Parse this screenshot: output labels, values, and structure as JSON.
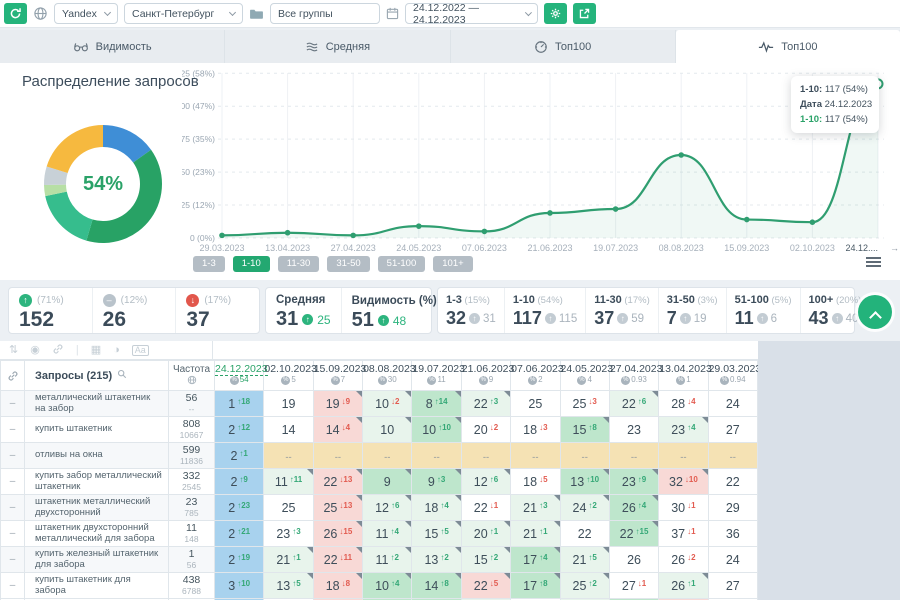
{
  "topbar": {
    "engine": "Yandex",
    "region": "Санкт-Петербург",
    "groups": "Все группы",
    "date_range": "24.12.2022 — 24.12.2023"
  },
  "tabs": [
    {
      "label": "Видимость",
      "icon": "visibility-icon",
      "active": false
    },
    {
      "label": "Средняя",
      "icon": "average-icon",
      "active": false
    },
    {
      "label": "Топ100",
      "icon": "gauge-icon",
      "active": false
    },
    {
      "label": "Топ100",
      "icon": "pulse-icon",
      "active": true
    }
  ],
  "donut": {
    "title": "Распределение запросов",
    "center_label": "54%",
    "type": "pie",
    "segments": [
      {
        "name": "1-3",
        "percent": 15,
        "color": "#3F8ED6"
      },
      {
        "name": "4-10",
        "percent": 39,
        "color": "#28A265"
      },
      {
        "name": "11-30",
        "percent": 17,
        "color": "#36BD8D"
      },
      {
        "name": "31-50",
        "percent": 3,
        "color": "#B7DFA5"
      },
      {
        "name": "51-100",
        "percent": 5,
        "color": "#C8D1D7"
      },
      {
        "name": "100+",
        "percent": 20,
        "color": "#F6B93F"
      }
    ]
  },
  "chart": {
    "type": "line",
    "series_name": "1-10",
    "x_labels": [
      "29.03.2023",
      "13.04.2023",
      "27.04.2023",
      "24.05.2023",
      "07.06.2023",
      "21.06.2023",
      "19.07.2023",
      "08.08.2023",
      "15.09.2023",
      "02.10.2023",
      "24.12...."
    ],
    "values": [
      2,
      4,
      2,
      9,
      5,
      19,
      22,
      63,
      14,
      12,
      117
    ],
    "ylim": [
      0,
      125
    ],
    "y_ticks": [
      {
        "v": 0,
        "label": "0 (0%)"
      },
      {
        "v": 25,
        "label": "25 (12%)"
      },
      {
        "v": 50,
        "label": "50 (23%)"
      },
      {
        "v": 75,
        "label": "75 (35%)"
      },
      {
        "v": 100,
        "label": "100 (47%)"
      },
      {
        "v": 125,
        "label": "125 (58%)"
      }
    ],
    "line_color": "#2F9E70",
    "tooltip": {
      "header_label": "1-10:",
      "header_value": "117 (54%)",
      "date_label": "Дата",
      "date_value": "24.12.2023",
      "series_label": "1-10:",
      "series_value": "117 (54%)"
    }
  },
  "range_buttons": {
    "items": [
      "1-3",
      "1-10",
      "11-30",
      "31-50",
      "51-100",
      "101+"
    ],
    "active": "1-10"
  },
  "stats": {
    "changes": [
      {
        "dir": "up",
        "label": "(71%)",
        "value": "152"
      },
      {
        "dir": "flat",
        "label": "(12%)",
        "value": "26"
      },
      {
        "dir": "down",
        "label": "(17%)",
        "value": "37"
      }
    ],
    "summary": [
      {
        "label": "Средняя",
        "value": "31",
        "delta": "25",
        "warn": false
      },
      {
        "label": "Видимость (%)",
        "value": "51",
        "delta": "48",
        "warn": true
      }
    ],
    "buckets": [
      {
        "label": "1-3",
        "percent": "(15%)",
        "value": "32",
        "delta": "31"
      },
      {
        "label": "1-10",
        "percent": "(54%)",
        "value": "117",
        "delta": "115"
      },
      {
        "label": "11-30",
        "percent": "(17%)",
        "value": "37",
        "delta": "59"
      },
      {
        "label": "31-50",
        "percent": "(3%)",
        "value": "7",
        "delta": "19"
      },
      {
        "label": "51-100",
        "percent": "(5%)",
        "value": "11",
        "delta": "6"
      },
      {
        "label": "100+",
        "percent": "(20%)",
        "value": "43",
        "delta": "40"
      }
    ]
  },
  "table": {
    "query_header": "Запросы (215)",
    "freq_header": "Частота",
    "columns": [
      {
        "date": "24.12.2023",
        "badge": "54",
        "current": true
      },
      {
        "date": "02.10.2023",
        "badge": "5",
        "current": false
      },
      {
        "date": "15.09.2023",
        "badge": "7",
        "current": false
      },
      {
        "date": "08.08.2023",
        "badge": "30",
        "current": false
      },
      {
        "date": "19.07.2023",
        "badge": "11",
        "current": false
      },
      {
        "date": "21.06.2023",
        "badge": "9",
        "current": false
      },
      {
        "date": "07.06.2023",
        "badge": "2",
        "current": false
      },
      {
        "date": "24.05.2023",
        "badge": "4",
        "current": false
      },
      {
        "date": "27.04.2023",
        "badge": "0.93",
        "current": false
      },
      {
        "date": "13.04.2023",
        "badge": "1",
        "current": false
      },
      {
        "date": "29.03.2023",
        "badge": "0.94",
        "current": false
      }
    ],
    "rows": [
      {
        "query": "металлический штакетник на забор",
        "freq1": "56",
        "freq2": "--",
        "cells": [
          {
            "v": "1",
            "d": 18,
            "dir": "up",
            "bg": "blue"
          },
          {
            "v": "19"
          },
          {
            "v": "19",
            "d": 9,
            "dir": "down",
            "bg": "pink"
          },
          {
            "v": "10",
            "d": 2,
            "dir": "down",
            "bg": "pale"
          },
          {
            "v": "8",
            "d": 14,
            "dir": "up",
            "bg": "green"
          },
          {
            "v": "22",
            "d": 3,
            "dir": "up",
            "bg": "pale"
          },
          {
            "v": "25"
          },
          {
            "v": "25",
            "d": 3,
            "dir": "down"
          },
          {
            "v": "22",
            "d": 6,
            "dir": "up",
            "bg": "pale"
          },
          {
            "v": "28",
            "d": 4,
            "dir": "down"
          },
          {
            "v": "24"
          }
        ]
      },
      {
        "query": "купить штакетник",
        "freq1": "808",
        "freq2": "10667",
        "cells": [
          {
            "v": "2",
            "d": 12,
            "dir": "up",
            "bg": "blue"
          },
          {
            "v": "14"
          },
          {
            "v": "14",
            "d": 4,
            "dir": "down",
            "bg": "pink"
          },
          {
            "v": "10",
            "bg": "pale"
          },
          {
            "v": "10",
            "d": 10,
            "dir": "up",
            "bg": "green"
          },
          {
            "v": "20",
            "d": 2,
            "dir": "down"
          },
          {
            "v": "18",
            "d": 3,
            "dir": "down"
          },
          {
            "v": "15",
            "d": 8,
            "dir": "up",
            "bg": "green"
          },
          {
            "v": "23"
          },
          {
            "v": "23",
            "d": 4,
            "dir": "up",
            "bg": "pale"
          },
          {
            "v": "27"
          }
        ]
      },
      {
        "query": "отливы на окна",
        "freq1": "599",
        "freq2": "11836",
        "cells": [
          {
            "v": "2",
            "d": 1,
            "dir": "up",
            "bg": "blue"
          },
          {
            "v": "--",
            "bg": "tan"
          },
          {
            "v": "--",
            "bg": "tan"
          },
          {
            "v": "--",
            "bg": "tan"
          },
          {
            "v": "--",
            "bg": "tan"
          },
          {
            "v": "--",
            "bg": "tan"
          },
          {
            "v": "--",
            "bg": "tan"
          },
          {
            "v": "--",
            "bg": "tan"
          },
          {
            "v": "--",
            "bg": "tan"
          },
          {
            "v": "--",
            "bg": "tan"
          },
          {
            "v": "--",
            "bg": "tan"
          }
        ]
      },
      {
        "query": "купить забор металлический штакетник",
        "freq1": "332",
        "freq2": "2545",
        "cells": [
          {
            "v": "2",
            "d": 9,
            "dir": "up",
            "bg": "blue"
          },
          {
            "v": "11",
            "d": 11,
            "dir": "up",
            "bg": "pale"
          },
          {
            "v": "22",
            "d": 13,
            "dir": "down",
            "bg": "pink"
          },
          {
            "v": "9",
            "bg": "green"
          },
          {
            "v": "9",
            "d": 3,
            "dir": "up",
            "bg": "green"
          },
          {
            "v": "12",
            "d": 6,
            "dir": "up",
            "bg": "pale"
          },
          {
            "v": "18",
            "d": 5,
            "dir": "down"
          },
          {
            "v": "13",
            "d": 10,
            "dir": "up",
            "bg": "green"
          },
          {
            "v": "23",
            "d": 9,
            "dir": "up",
            "bg": "green"
          },
          {
            "v": "32",
            "d": 10,
            "dir": "down",
            "bg": "pink"
          },
          {
            "v": "22"
          }
        ]
      },
      {
        "query": "штакетник металлический двухсторонний",
        "freq1": "23",
        "freq2": "785",
        "cells": [
          {
            "v": "2",
            "d": 23,
            "dir": "up",
            "bg": "blue"
          },
          {
            "v": "25"
          },
          {
            "v": "25",
            "d": 13,
            "dir": "down",
            "bg": "pink"
          },
          {
            "v": "12",
            "d": 6,
            "dir": "up",
            "bg": "pale"
          },
          {
            "v": "18",
            "d": 4,
            "dir": "up",
            "bg": "pale"
          },
          {
            "v": "22",
            "d": 1,
            "dir": "down"
          },
          {
            "v": "21",
            "d": 3,
            "dir": "up",
            "bg": "pale"
          },
          {
            "v": "24",
            "d": 2,
            "dir": "up",
            "bg": "pale"
          },
          {
            "v": "26",
            "d": 4,
            "dir": "up",
            "bg": "green"
          },
          {
            "v": "30",
            "d": 1,
            "dir": "down"
          },
          {
            "v": "29"
          }
        ]
      },
      {
        "query": "штакетник двухсторонний металлический для забора",
        "freq1": "11",
        "freq2": "148",
        "cells": [
          {
            "v": "2",
            "d": 21,
            "dir": "up",
            "bg": "blue"
          },
          {
            "v": "23",
            "d": 3,
            "dir": "up"
          },
          {
            "v": "26",
            "d": 15,
            "dir": "down",
            "bg": "pink"
          },
          {
            "v": "11",
            "d": 4,
            "dir": "up",
            "bg": "pale"
          },
          {
            "v": "15",
            "d": 5,
            "dir": "up",
            "bg": "pale"
          },
          {
            "v": "20",
            "d": 1,
            "dir": "up",
            "bg": "pale"
          },
          {
            "v": "21",
            "d": 1,
            "dir": "up",
            "bg": "pale"
          },
          {
            "v": "22"
          },
          {
            "v": "22",
            "d": 15,
            "dir": "up",
            "bg": "green"
          },
          {
            "v": "37",
            "d": 1,
            "dir": "down"
          },
          {
            "v": "36"
          }
        ]
      },
      {
        "query": "купить железный штакетник для забора",
        "freq1": "1",
        "freq2": "56",
        "cells": [
          {
            "v": "2",
            "d": 19,
            "dir": "up",
            "bg": "blue"
          },
          {
            "v": "21",
            "d": 1,
            "dir": "up",
            "bg": "pale"
          },
          {
            "v": "22",
            "d": 11,
            "dir": "down",
            "bg": "pink"
          },
          {
            "v": "11",
            "d": 2,
            "dir": "up",
            "bg": "pale"
          },
          {
            "v": "13",
            "d": 2,
            "dir": "up",
            "bg": "pale"
          },
          {
            "v": "15",
            "d": 2,
            "dir": "up",
            "bg": "pale"
          },
          {
            "v": "17",
            "d": 4,
            "dir": "up",
            "bg": "green"
          },
          {
            "v": "21",
            "d": 5,
            "dir": "up",
            "bg": "pale"
          },
          {
            "v": "26"
          },
          {
            "v": "26",
            "d": 2,
            "dir": "down"
          },
          {
            "v": "24"
          }
        ]
      },
      {
        "query": "купить штакетник для забора",
        "freq1": "438",
        "freq2": "6788",
        "cells": [
          {
            "v": "3",
            "d": 10,
            "dir": "up",
            "bg": "blue"
          },
          {
            "v": "13",
            "d": 5,
            "dir": "up",
            "bg": "pale"
          },
          {
            "v": "18",
            "d": 8,
            "dir": "down",
            "bg": "pink"
          },
          {
            "v": "10",
            "d": 4,
            "dir": "up",
            "bg": "green"
          },
          {
            "v": "14",
            "d": 8,
            "dir": "up",
            "bg": "green"
          },
          {
            "v": "22",
            "d": 5,
            "dir": "down",
            "bg": "pink"
          },
          {
            "v": "17",
            "d": 8,
            "dir": "up",
            "bg": "green"
          },
          {
            "v": "25",
            "d": 2,
            "dir": "up",
            "bg": "pale"
          },
          {
            "v": "27",
            "d": 1,
            "dir": "down"
          },
          {
            "v": "26",
            "d": 1,
            "dir": "up",
            "bg": "pale"
          },
          {
            "v": "27"
          }
        ]
      }
    ],
    "partial_row": [
      "blue",
      "white",
      "pink",
      "green",
      "green",
      "pale",
      "white",
      "pale",
      "green",
      "pink",
      "white"
    ]
  }
}
